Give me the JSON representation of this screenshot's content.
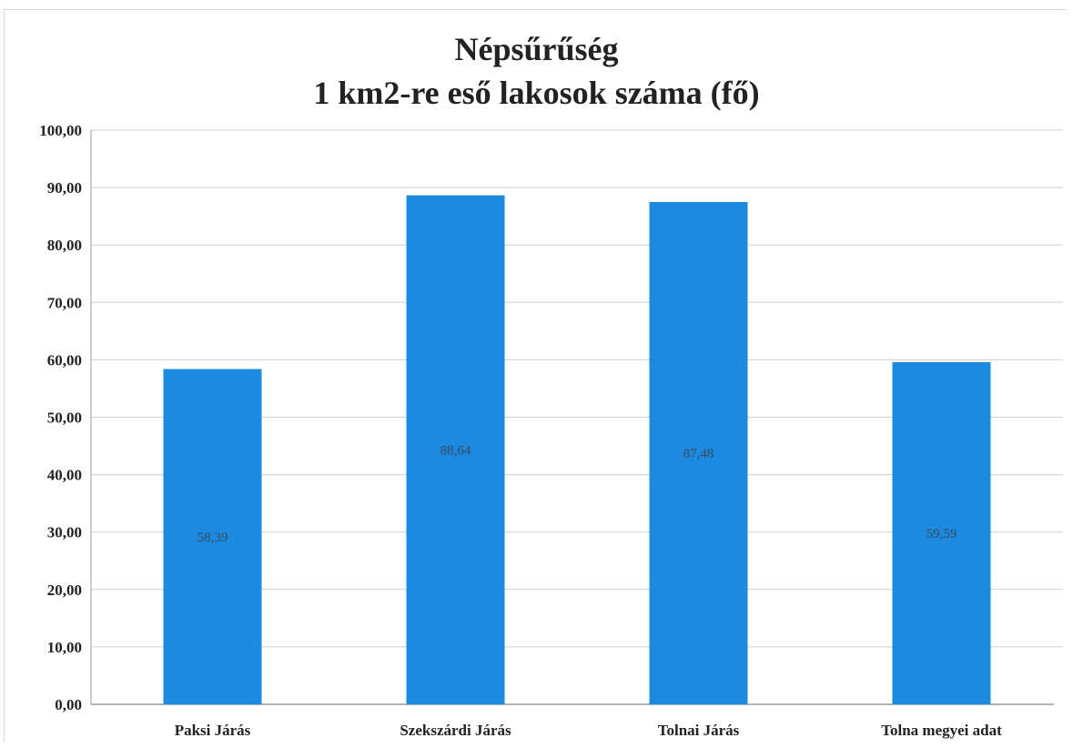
{
  "chart_data": {
    "type": "bar",
    "title": "Népsűrűség",
    "subtitle": "1 km2-re eső lakosok száma (fő)",
    "categories": [
      "Paksi Járás",
      "Szekszárdi Járás",
      "Tolnai Járás",
      "Tolna megyei adat"
    ],
    "values": [
      58.39,
      88.64,
      87.48,
      59.59
    ],
    "data_labels": [
      "58,39",
      "88,64",
      "87,48",
      "59,59"
    ],
    "ylim": [
      0,
      100
    ],
    "yticks": [
      "0,00",
      "10,00",
      "20,00",
      "30,00",
      "40,00",
      "50,00",
      "60,00",
      "70,00",
      "80,00",
      "90,00",
      "100,00"
    ],
    "ytick_values": [
      0,
      10,
      20,
      30,
      40,
      50,
      60,
      70,
      80,
      90,
      100
    ],
    "xlabel": "",
    "ylabel": "",
    "grid": true,
    "legend": "none",
    "bar_color": "#1b8ae0"
  }
}
